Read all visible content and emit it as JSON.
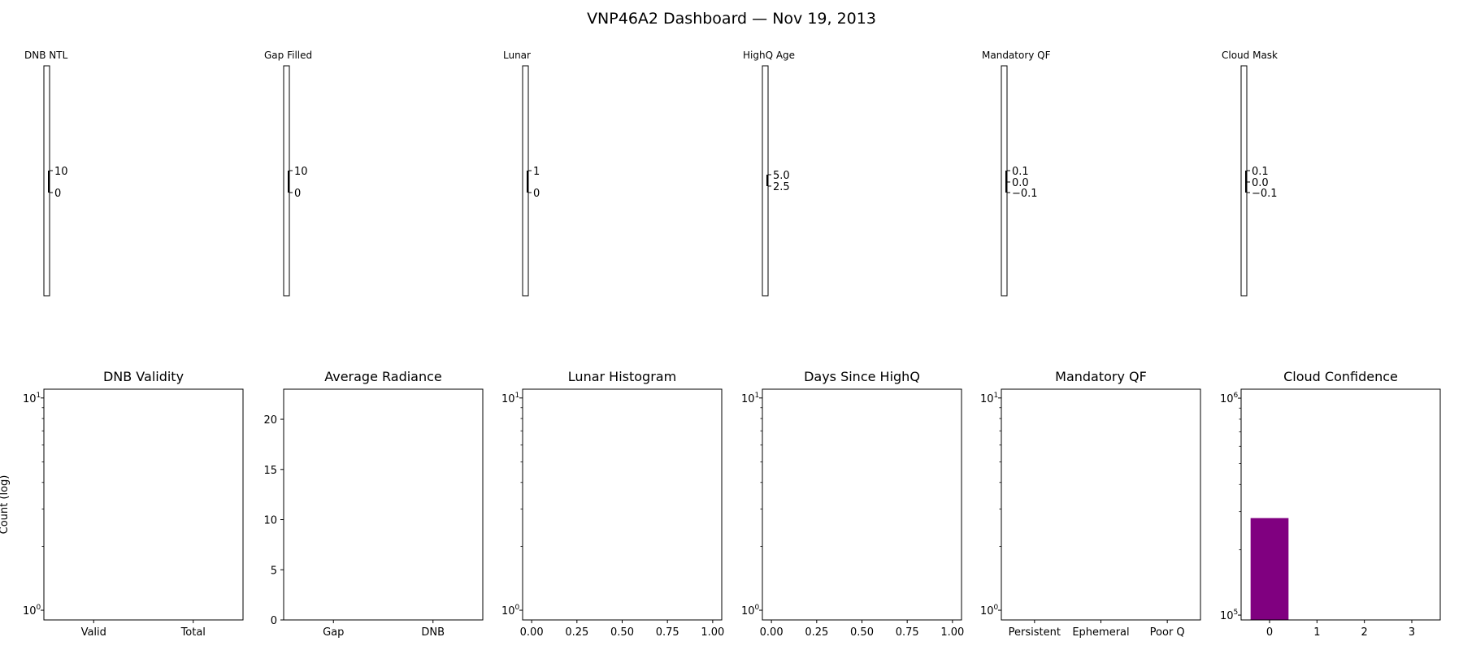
{
  "title": "VNP46A2 Dashboard — Nov 19, 2013",
  "colorbars": [
    {
      "label": "DNB NTL",
      "ticks": [
        "10",
        "0"
      ],
      "tick_values": [
        10,
        0
      ]
    },
    {
      "label": "Gap Filled",
      "ticks": [
        "10",
        "0"
      ],
      "tick_values": [
        10,
        0
      ]
    },
    {
      "label": "Lunar",
      "ticks": [
        "1",
        "0"
      ],
      "tick_values": [
        1,
        0
      ]
    },
    {
      "label": "HighQ Age",
      "ticks": [
        "5.0",
        "2.5"
      ],
      "tick_values": [
        5.0,
        2.5
      ]
    },
    {
      "label": "Mandatory QF",
      "ticks": [
        "0.1",
        "0.0",
        "−0.1"
      ],
      "tick_values": [
        0.1,
        0.0,
        -0.1
      ]
    },
    {
      "label": "Cloud Mask",
      "ticks": [
        "0.1",
        "0.0",
        "−0.1"
      ],
      "tick_values": [
        0.1,
        0.0,
        -0.1
      ]
    }
  ],
  "chart_data": [
    {
      "type": "bar",
      "title": "DNB Validity",
      "ylabel": "Count (log)",
      "yscale": "log",
      "ylim": [
        0.9,
        11
      ],
      "categories": [
        "Valid",
        "Total"
      ],
      "values": [
        0,
        0
      ],
      "yticks": [
        {
          "value": 1,
          "base": "10",
          "exp": "0"
        },
        {
          "value": 10,
          "base": "10",
          "exp": "1"
        }
      ]
    },
    {
      "type": "bar",
      "title": "Average Radiance",
      "yscale": "linear",
      "ylim": [
        0,
        23
      ],
      "categories": [
        "Gap",
        "DNB"
      ],
      "values": [
        0,
        0
      ],
      "yticks": [
        {
          "value": 0,
          "label": "0"
        },
        {
          "value": 5,
          "label": "5"
        },
        {
          "value": 10,
          "label": "10"
        },
        {
          "value": 15,
          "label": "15"
        },
        {
          "value": 20,
          "label": "20"
        }
      ]
    },
    {
      "type": "bar",
      "title": "Lunar Histogram",
      "yscale": "log",
      "ylim": [
        0.9,
        11
      ],
      "xlim": [
        -0.05,
        1.05
      ],
      "xticks": [
        "0.00",
        "0.25",
        "0.50",
        "0.75",
        "1.00"
      ],
      "xtick_values": [
        0,
        0.25,
        0.5,
        0.75,
        1.0
      ],
      "values": [],
      "yticks": [
        {
          "value": 1,
          "base": "10",
          "exp": "0"
        },
        {
          "value": 10,
          "base": "10",
          "exp": "1"
        }
      ]
    },
    {
      "type": "bar",
      "title": "Days Since HighQ",
      "yscale": "log",
      "ylim": [
        0.9,
        11
      ],
      "xlim": [
        -0.05,
        1.05
      ],
      "xticks": [
        "0.00",
        "0.25",
        "0.50",
        "0.75",
        "1.00"
      ],
      "xtick_values": [
        0,
        0.25,
        0.5,
        0.75,
        1.0
      ],
      "values": [],
      "yticks": [
        {
          "value": 1,
          "base": "10",
          "exp": "0"
        },
        {
          "value": 10,
          "base": "10",
          "exp": "1"
        }
      ]
    },
    {
      "type": "bar",
      "title": "Mandatory QF",
      "yscale": "log",
      "ylim": [
        0.9,
        11
      ],
      "categories": [
        "Persistent",
        "Ephemeral",
        "Poor Q"
      ],
      "values": [
        0,
        0,
        0
      ],
      "yticks": [
        {
          "value": 1,
          "base": "10",
          "exp": "0"
        },
        {
          "value": 10,
          "base": "10",
          "exp": "1"
        }
      ]
    },
    {
      "type": "bar",
      "title": "Cloud Confidence",
      "yscale": "log",
      "ylim": [
        95000,
        1100000
      ],
      "xlim": [
        -0.6,
        3.6
      ],
      "categories": [
        "0",
        "1",
        "2",
        "3"
      ],
      "values": [
        280000,
        0,
        0,
        0
      ],
      "bar_color": "#800080",
      "yticks": [
        {
          "value": 100000,
          "base": "10",
          "exp": "5"
        },
        {
          "value": 1000000,
          "base": "10",
          "exp": "6"
        }
      ]
    }
  ]
}
